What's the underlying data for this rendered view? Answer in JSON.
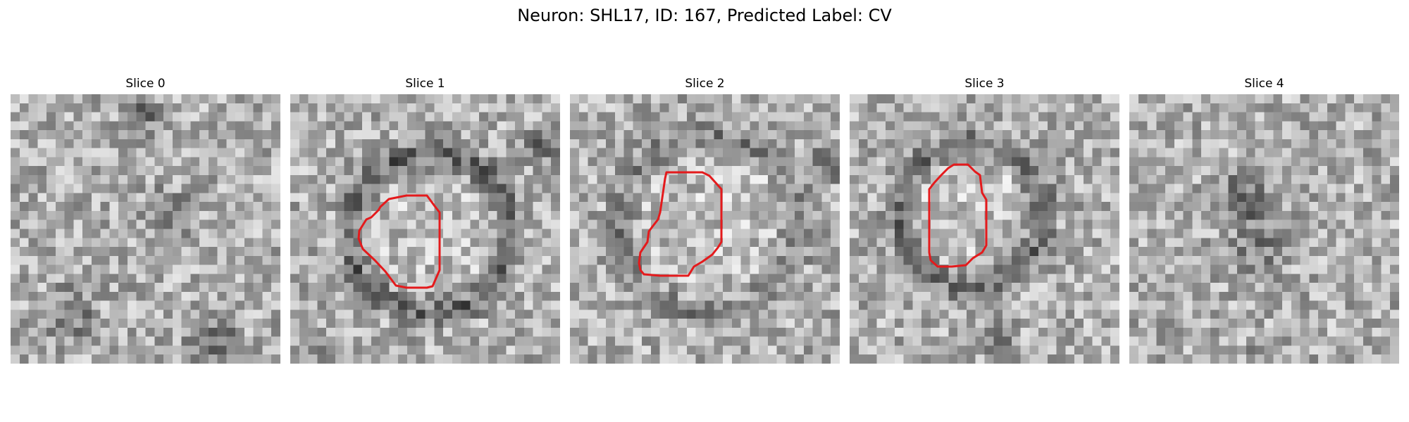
{
  "title": "Neuron: SHL17, ID: 167, Predicted Label: CV",
  "contour_color": "#e41a1c",
  "panels": [
    {
      "title": "Slice 0",
      "has_contour": false
    },
    {
      "title": "Slice 1",
      "has_contour": true
    },
    {
      "title": "Slice 2",
      "has_contour": true
    },
    {
      "title": "Slice 3",
      "has_contour": true
    },
    {
      "title": "Slice 4",
      "has_contour": false
    }
  ]
}
